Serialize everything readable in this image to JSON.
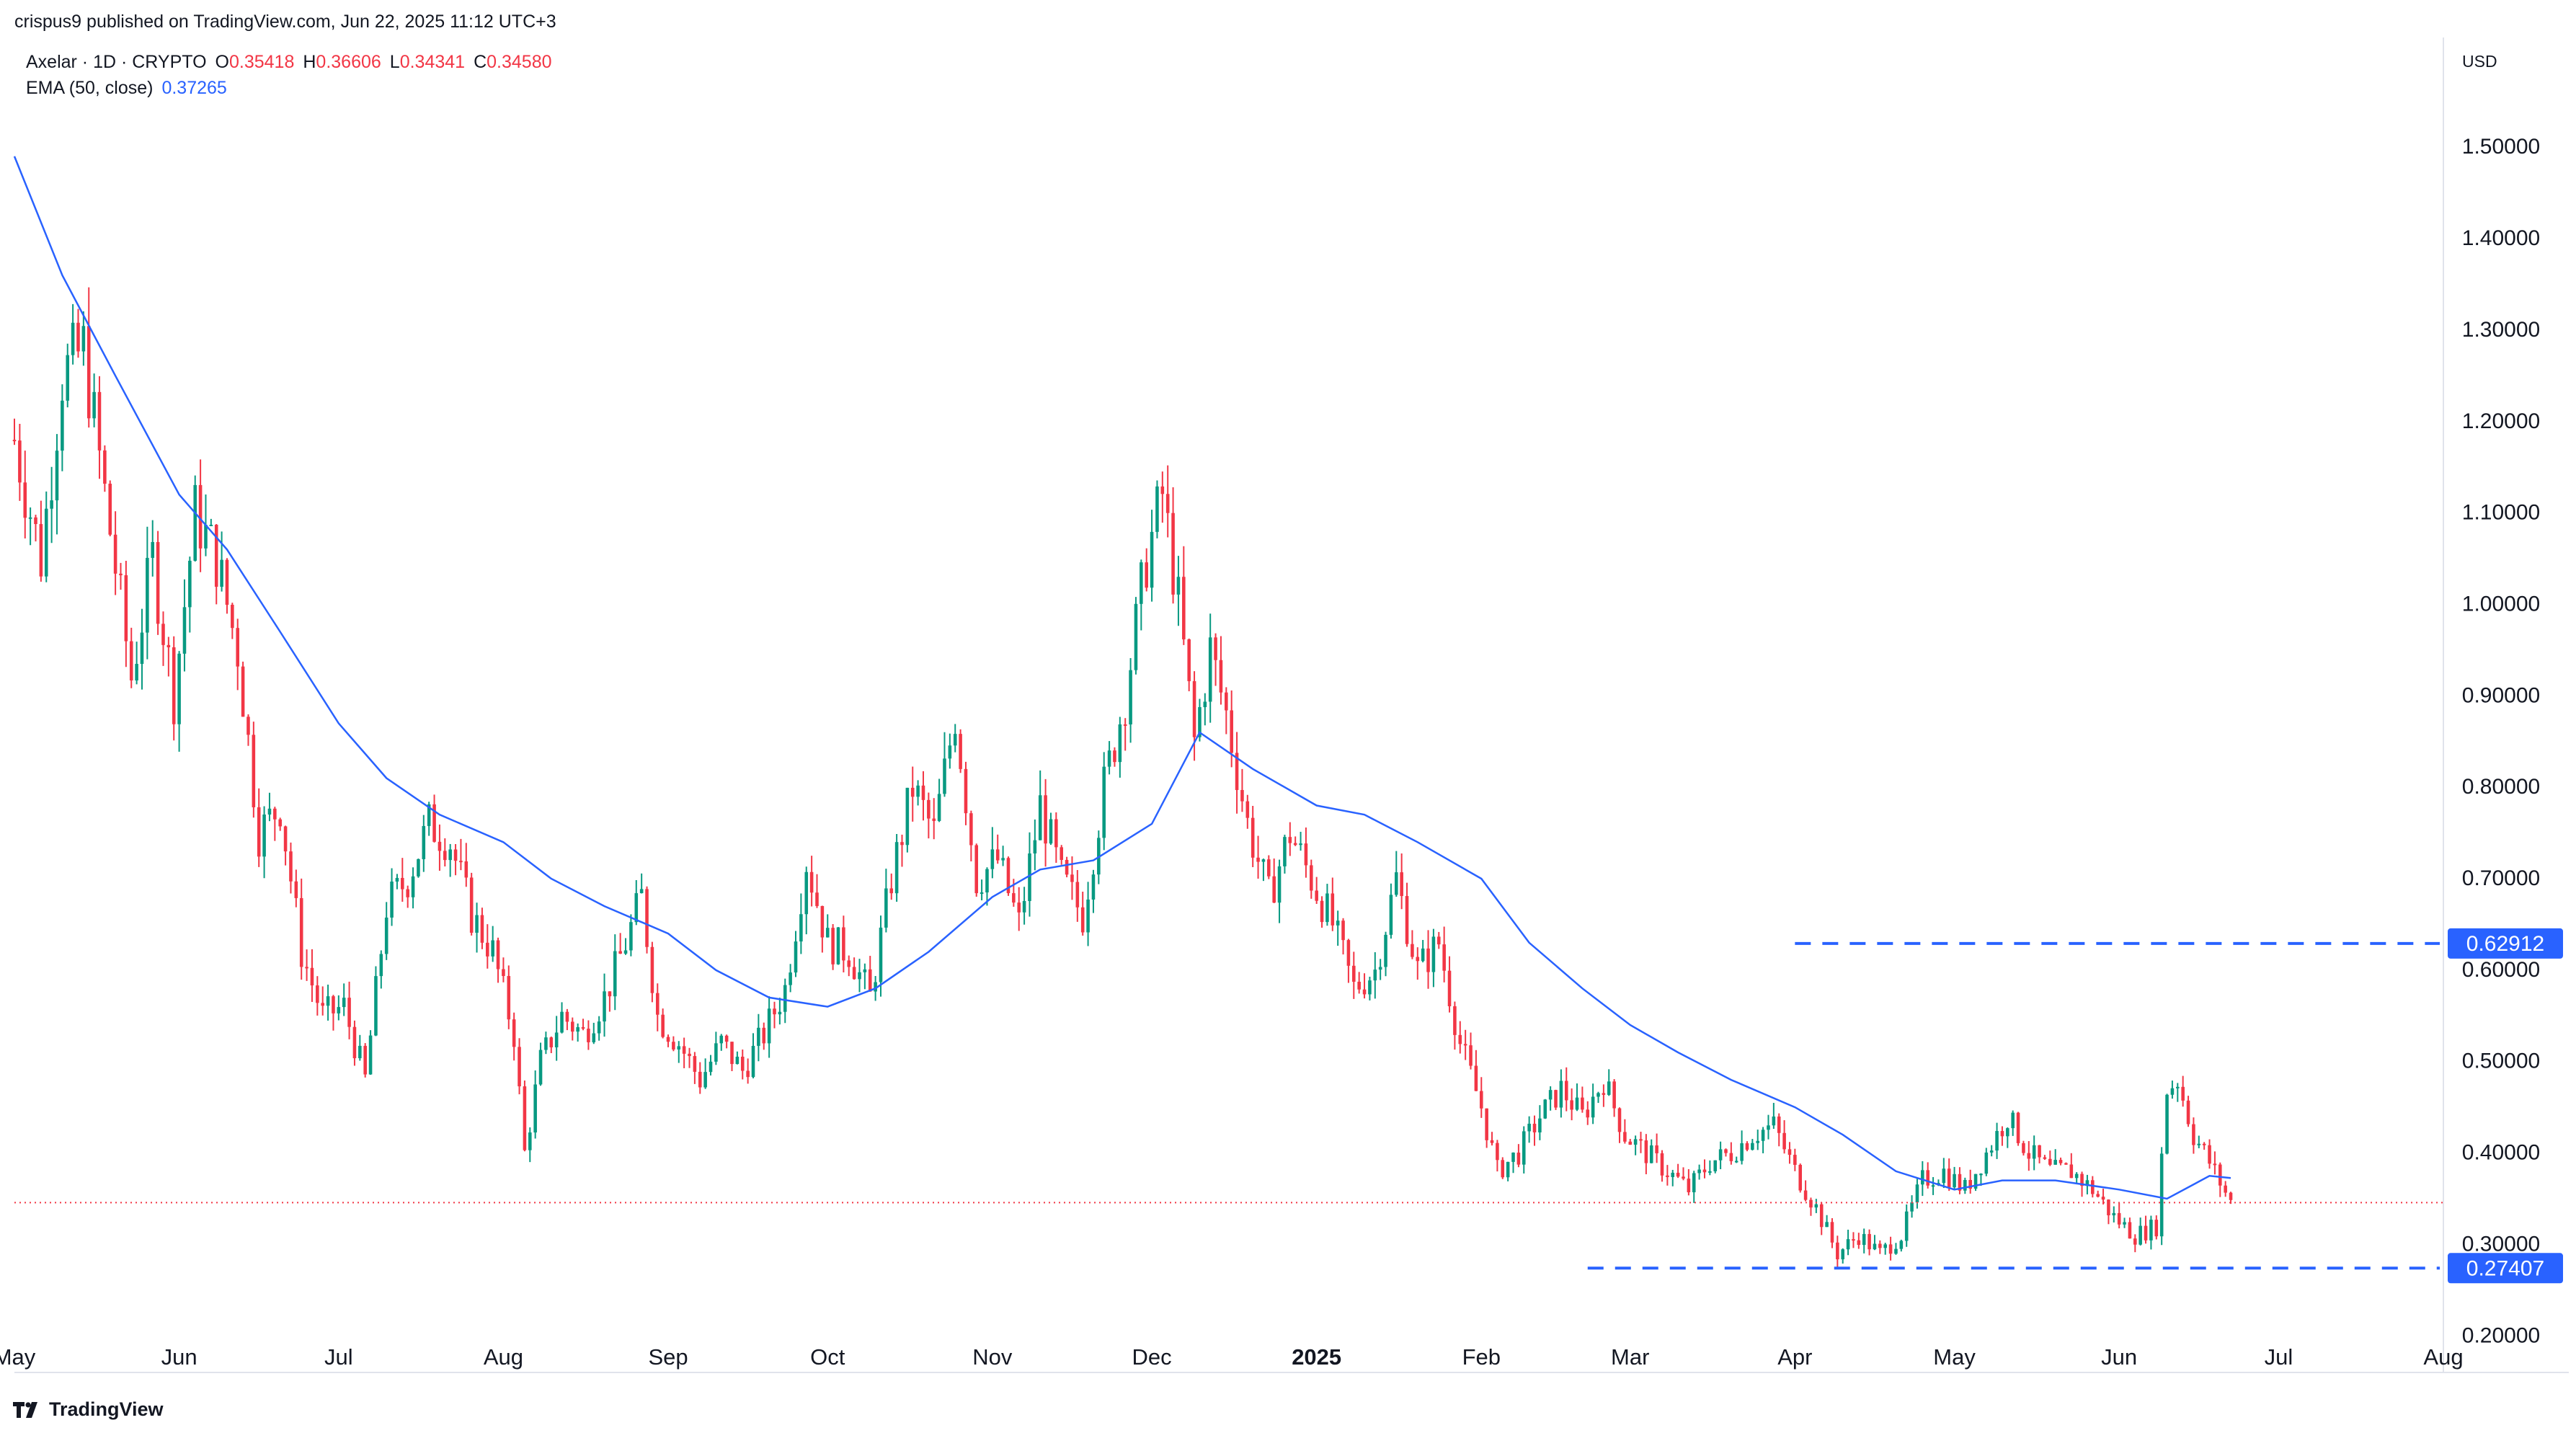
{
  "header": {
    "published": "crispus9 published on TradingView.com, Jun 22, 2025 11:12 UTC+3",
    "symbol": "Axelar · 1D · CRYPTO",
    "o_label": "O",
    "o_value": "0.35418",
    "h_label": "H",
    "h_value": "0.36606",
    "l_label": "L",
    "l_value": "0.34341",
    "c_label": "C",
    "c_value": "0.34580",
    "ema_label": "EMA (50, close)",
    "ema_value": "0.37265"
  },
  "currency": "USD",
  "footer": {
    "brand": "TradingView"
  },
  "colors": {
    "up": "#089981",
    "down": "#f23645",
    "ema": "#2962ff",
    "level": "#2962ff",
    "price_line": "#f23645"
  },
  "chart_data": {
    "type": "candlestick",
    "title": "Axelar · 1D · CRYPTO",
    "ylim": [
      0.16,
      1.62
    ],
    "y_ticks": [
      "1.50000",
      "1.40000",
      "1.30000",
      "1.20000",
      "1.10000",
      "1.00000",
      "0.90000",
      "0.80000",
      "0.70000",
      "0.60000",
      "0.50000",
      "0.40000",
      "0.30000",
      "0.20000"
    ],
    "x_ticks": [
      "May",
      "Jun",
      "Jul",
      "Aug",
      "Sep",
      "Oct",
      "Nov",
      "Dec",
      "2025",
      "Feb",
      "Mar",
      "Apr",
      "May",
      "Jun",
      "Jul",
      "Aug"
    ],
    "x_start": "2024-05-01",
    "x_end": "2025-08-01",
    "current_price": 0.3458,
    "levels": [
      {
        "value": 0.62912,
        "label": "0.62912",
        "from_date": "2025-04-01"
      },
      {
        "value": 0.27407,
        "label": "0.27407",
        "from_date": "2025-02-21"
      }
    ],
    "close_path": [
      [
        "2024-05-01",
        1.18
      ],
      [
        "2024-05-06",
        1.05
      ],
      [
        "2024-05-10",
        1.25
      ],
      [
        "2024-05-14",
        1.28
      ],
      [
        "2024-05-18",
        1.12
      ],
      [
        "2024-05-23",
        0.92
      ],
      [
        "2024-05-27",
        1.05
      ],
      [
        "2024-05-31",
        0.9
      ],
      [
        "2024-06-04",
        1.1
      ],
      [
        "2024-06-08",
        1.05
      ],
      [
        "2024-06-12",
        0.95
      ],
      [
        "2024-06-16",
        0.75
      ],
      [
        "2024-06-20",
        0.78
      ],
      [
        "2024-06-24",
        0.62
      ],
      [
        "2024-06-28",
        0.55
      ],
      [
        "2024-07-02",
        0.56
      ],
      [
        "2024-07-06",
        0.48
      ],
      [
        "2024-07-10",
        0.67
      ],
      [
        "2024-07-14",
        0.7
      ],
      [
        "2024-07-18",
        0.76
      ],
      [
        "2024-07-22",
        0.74
      ],
      [
        "2024-07-26",
        0.66
      ],
      [
        "2024-07-30",
        0.62
      ],
      [
        "2024-08-03",
        0.53
      ],
      [
        "2024-08-05",
        0.4
      ],
      [
        "2024-08-08",
        0.5
      ],
      [
        "2024-08-12",
        0.55
      ],
      [
        "2024-08-16",
        0.53
      ],
      [
        "2024-08-20",
        0.57
      ],
      [
        "2024-08-24",
        0.63
      ],
      [
        "2024-08-27",
        0.68
      ],
      [
        "2024-08-30",
        0.55
      ],
      [
        "2024-09-03",
        0.52
      ],
      [
        "2024-09-07",
        0.48
      ],
      [
        "2024-09-11",
        0.52
      ],
      [
        "2024-09-15",
        0.49
      ],
      [
        "2024-09-19",
        0.53
      ],
      [
        "2024-09-23",
        0.58
      ],
      [
        "2024-09-27",
        0.72
      ],
      [
        "2024-10-01",
        0.63
      ],
      [
        "2024-10-05",
        0.62
      ],
      [
        "2024-10-09",
        0.57
      ],
      [
        "2024-10-13",
        0.7
      ],
      [
        "2024-10-17",
        0.8
      ],
      [
        "2024-10-21",
        0.75
      ],
      [
        "2024-10-25",
        0.88
      ],
      [
        "2024-10-29",
        0.7
      ],
      [
        "2024-11-02",
        0.72
      ],
      [
        "2024-11-06",
        0.65
      ],
      [
        "2024-11-10",
        0.78
      ],
      [
        "2024-11-14",
        0.7
      ],
      [
        "2024-11-18",
        0.66
      ],
      [
        "2024-11-22",
        0.8
      ],
      [
        "2024-11-26",
        0.9
      ],
      [
        "2024-11-30",
        1.05
      ],
      [
        "2024-12-03",
        1.12
      ],
      [
        "2024-12-06",
        1.0
      ],
      [
        "2024-12-09",
        0.85
      ],
      [
        "2024-12-12",
        0.95
      ],
      [
        "2024-12-15",
        0.88
      ],
      [
        "2024-12-19",
        0.76
      ],
      [
        "2024-12-23",
        0.68
      ],
      [
        "2024-12-27",
        0.75
      ],
      [
        "2024-12-31",
        0.7
      ],
      [
        "2025-01-04",
        0.65
      ],
      [
        "2025-01-08",
        0.58
      ],
      [
        "2025-01-12",
        0.6
      ],
      [
        "2025-01-16",
        0.7
      ],
      [
        "2025-01-20",
        0.6
      ],
      [
        "2025-01-24",
        0.63
      ],
      [
        "2025-01-28",
        0.52
      ],
      [
        "2025-02-01",
        0.45
      ],
      [
        "2025-02-04",
        0.38
      ],
      [
        "2025-02-08",
        0.4
      ],
      [
        "2025-02-12",
        0.44
      ],
      [
        "2025-02-16",
        0.47
      ],
      [
        "2025-02-20",
        0.44
      ],
      [
        "2025-02-24",
        0.48
      ],
      [
        "2025-02-28",
        0.42
      ],
      [
        "2025-03-04",
        0.4
      ],
      [
        "2025-03-08",
        0.38
      ],
      [
        "2025-03-12",
        0.36
      ],
      [
        "2025-03-16",
        0.39
      ],
      [
        "2025-03-20",
        0.4
      ],
      [
        "2025-03-24",
        0.42
      ],
      [
        "2025-03-28",
        0.43
      ],
      [
        "2025-04-01",
        0.38
      ],
      [
        "2025-04-05",
        0.34
      ],
      [
        "2025-04-09",
        0.29
      ],
      [
        "2025-04-13",
        0.31
      ],
      [
        "2025-04-17",
        0.29
      ],
      [
        "2025-04-21",
        0.31
      ],
      [
        "2025-04-25",
        0.37
      ],
      [
        "2025-04-29",
        0.38
      ],
      [
        "2025-05-03",
        0.36
      ],
      [
        "2025-05-07",
        0.4
      ],
      [
        "2025-05-11",
        0.44
      ],
      [
        "2025-05-15",
        0.4
      ],
      [
        "2025-05-19",
        0.38
      ],
      [
        "2025-05-23",
        0.38
      ],
      [
        "2025-05-27",
        0.36
      ],
      [
        "2025-05-31",
        0.33
      ],
      [
        "2025-06-04",
        0.31
      ],
      [
        "2025-06-08",
        0.32
      ],
      [
        "2025-06-10",
        0.47
      ],
      [
        "2025-06-12",
        0.48
      ],
      [
        "2025-06-15",
        0.42
      ],
      [
        "2025-06-18",
        0.39
      ],
      [
        "2025-06-22",
        0.3458
      ]
    ],
    "ema_path": [
      [
        "2024-05-01",
        1.49
      ],
      [
        "2024-05-10",
        1.36
      ],
      [
        "2024-05-20",
        1.25
      ],
      [
        "2024-06-01",
        1.12
      ],
      [
        "2024-06-10",
        1.06
      ],
      [
        "2024-06-20",
        0.97
      ],
      [
        "2024-07-01",
        0.87
      ],
      [
        "2024-07-10",
        0.81
      ],
      [
        "2024-07-20",
        0.77
      ],
      [
        "2024-08-01",
        0.74
      ],
      [
        "2024-08-10",
        0.7
      ],
      [
        "2024-08-20",
        0.67
      ],
      [
        "2024-09-01",
        0.64
      ],
      [
        "2024-09-10",
        0.6
      ],
      [
        "2024-09-20",
        0.57
      ],
      [
        "2024-10-01",
        0.56
      ],
      [
        "2024-10-10",
        0.58
      ],
      [
        "2024-10-20",
        0.62
      ],
      [
        "2024-11-01",
        0.68
      ],
      [
        "2024-11-10",
        0.71
      ],
      [
        "2024-11-20",
        0.72
      ],
      [
        "2024-12-01",
        0.76
      ],
      [
        "2024-12-10",
        0.86
      ],
      [
        "2024-12-20",
        0.82
      ],
      [
        "2025-01-01",
        0.78
      ],
      [
        "2025-01-10",
        0.77
      ],
      [
        "2025-01-20",
        0.74
      ],
      [
        "2025-02-01",
        0.7
      ],
      [
        "2025-02-10",
        0.63
      ],
      [
        "2025-02-20",
        0.58
      ],
      [
        "2025-03-01",
        0.54
      ],
      [
        "2025-03-10",
        0.51
      ],
      [
        "2025-03-20",
        0.48
      ],
      [
        "2025-04-01",
        0.45
      ],
      [
        "2025-04-10",
        0.42
      ],
      [
        "2025-04-20",
        0.38
      ],
      [
        "2025-05-01",
        0.36
      ],
      [
        "2025-05-10",
        0.37
      ],
      [
        "2025-05-20",
        0.37
      ],
      [
        "2025-06-01",
        0.36
      ],
      [
        "2025-06-10",
        0.35
      ],
      [
        "2025-06-18",
        0.375
      ],
      [
        "2025-06-22",
        0.37265
      ]
    ]
  }
}
